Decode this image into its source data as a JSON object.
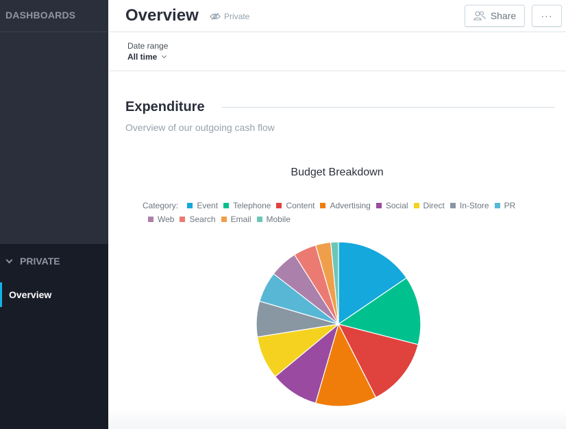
{
  "sidebar": {
    "header": "DASHBOARDS",
    "section_label": "PRIVATE",
    "items": [
      {
        "label": "Overview",
        "active": true
      }
    ]
  },
  "header": {
    "title": "Overview",
    "visibility": "Private",
    "share_label": "Share",
    "more_label": "···"
  },
  "filter": {
    "label": "Date range",
    "value": "All time"
  },
  "section": {
    "title": "Expenditure",
    "description": "Overview of our outgoing cash flow"
  },
  "colors": {
    "accent": "#14b2e2",
    "sidebar_bg": "#2b2f3c",
    "sidebar_dark": "#181c27"
  },
  "chart_data": {
    "type": "pie",
    "title": "Budget Breakdown",
    "legend_label": "Category:",
    "legend_position": "top",
    "categories": [
      "Event",
      "Telephone",
      "Content",
      "Advertising",
      "Social",
      "Direct",
      "In-Store",
      "PR",
      "Web",
      "Search",
      "Email",
      "Mobile"
    ],
    "values": [
      15.5,
      13.5,
      13.5,
      12,
      9.5,
      8.5,
      7,
      6,
      5.5,
      4.5,
      3,
      1.5
    ],
    "colors": [
      "#14a8dc",
      "#00c18d",
      "#e0423e",
      "#f07d0a",
      "#9a4aa0",
      "#f5d21f",
      "#8997a3",
      "#58b7d5",
      "#ab80ab",
      "#eb7a72",
      "#ef9f4b",
      "#6cc6b7"
    ]
  }
}
